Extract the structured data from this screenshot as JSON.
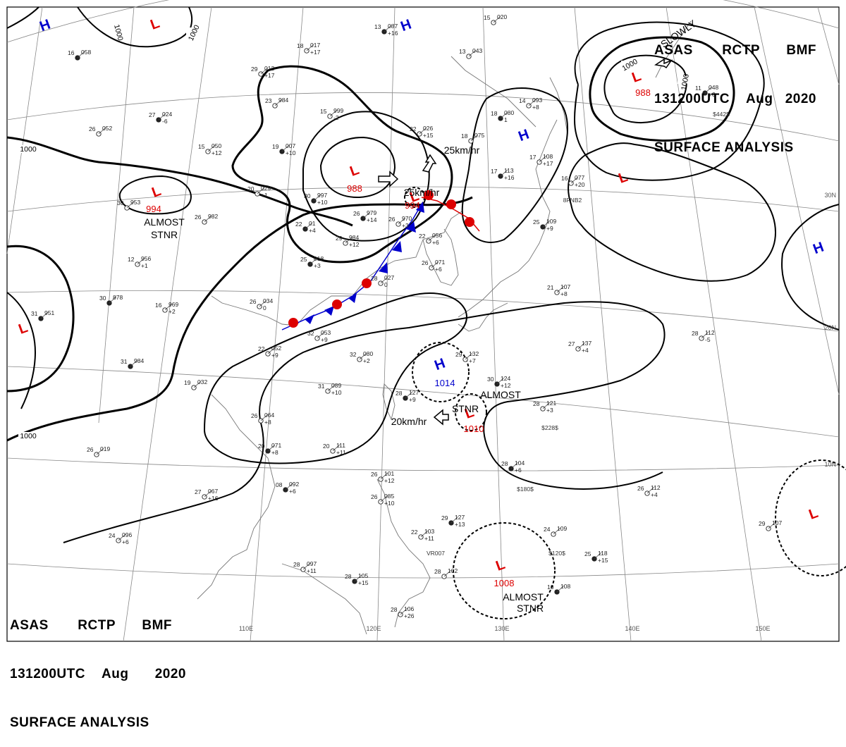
{
  "header": {
    "agency": "ASAS",
    "station": "RCTP",
    "unit": "BMF",
    "time": "131200UTC",
    "month": "Aug",
    "year": "2020",
    "product": "SURFACE ANALYSIS"
  },
  "colors": {
    "low": "#dd0000",
    "high": "#0000cc",
    "isobar": "#000000",
    "front_cold": "#0000cc",
    "front_warm": "#dd0000",
    "land": "#777777",
    "grid": "#888888"
  },
  "lon_labels": [
    "110E",
    "120E",
    "130E",
    "140E",
    "150E"
  ],
  "lat_labels": [
    "30N",
    "20N",
    "10N"
  ],
  "isobar_labels": [
    "1000",
    "1000",
    "1000",
    "1000",
    "1000",
    "1000",
    "1000"
  ],
  "pressure_centers": [
    {
      "type": "H",
      "symbol": "H"
    },
    {
      "type": "L",
      "symbol": "L"
    },
    {
      "type": "H",
      "symbol": "H"
    },
    {
      "type": "L",
      "symbol": "L",
      "value": "988"
    },
    {
      "type": "L",
      "symbol": "L",
      "value": "988"
    },
    {
      "type": "L",
      "symbol": "L",
      "value": "994"
    },
    {
      "type": "L",
      "symbol": "L",
      "value": "994"
    },
    {
      "type": "H",
      "symbol": "H"
    },
    {
      "type": "L",
      "symbol": "L"
    },
    {
      "type": "H",
      "symbol": "H"
    },
    {
      "type": "L",
      "symbol": "L"
    },
    {
      "type": "H",
      "symbol": "H",
      "value": "1014"
    },
    {
      "type": "L",
      "symbol": "L",
      "value": "1010"
    },
    {
      "type": "L",
      "symbol": "L",
      "value": "1008"
    },
    {
      "type": "L",
      "symbol": "L"
    }
  ],
  "annotations": [
    {
      "text": "ALMOST"
    },
    {
      "text": "STNR"
    },
    {
      "text": "ALMOST"
    },
    {
      "text": "STNR"
    },
    {
      "text": "ALMOST"
    },
    {
      "text": "STNR"
    },
    {
      "text": "25km/hr"
    },
    {
      "text": "25km/hr"
    },
    {
      "text": "20km/hr"
    },
    {
      "text": "SLOWLY"
    }
  ],
  "stations": [
    {
      "t": "13",
      "p": "087",
      "d": "+16"
    },
    {
      "t": "15",
      "p": "020",
      "d": ""
    },
    {
      "t": "18",
      "p": "017",
      "d": "+17"
    },
    {
      "t": "16",
      "p": "058",
      "d": ""
    },
    {
      "t": "23",
      "p": "984",
      "d": ""
    },
    {
      "t": "15",
      "p": "999",
      "d": "-2"
    },
    {
      "t": "27",
      "p": "024",
      "d": "-6"
    },
    {
      "t": "26",
      "p": "052",
      "d": ""
    },
    {
      "t": "15",
      "p": "050",
      "d": "+12"
    },
    {
      "t": "19",
      "p": "007",
      "d": "+10"
    },
    {
      "t": "22",
      "p": "026",
      "d": "+15"
    },
    {
      "t": "20",
      "p": "029",
      "d": "+1"
    },
    {
      "t": "30",
      "p": "997",
      "d": "+10"
    },
    {
      "t": "30",
      "p": "953",
      "d": ""
    },
    {
      "t": "26",
      "p": "982",
      "d": ""
    },
    {
      "t": "26",
      "p": "979",
      "d": "+14"
    },
    {
      "t": "26",
      "p": "970",
      "d": "+3"
    },
    {
      "t": "29",
      "p": "984",
      "d": "+12"
    },
    {
      "t": "22",
      "p": "01",
      "d": "+4"
    },
    {
      "t": "22",
      "p": "056",
      "d": "+6"
    },
    {
      "t": "12",
      "p": "956",
      "d": "+1"
    },
    {
      "t": "25",
      "p": "018",
      "d": "+3"
    },
    {
      "t": "26",
      "p": "071",
      "d": "+6"
    },
    {
      "t": "28",
      "p": "027",
      "d": "0"
    },
    {
      "t": "30",
      "p": "878",
      "d": ""
    },
    {
      "t": "16",
      "p": "969",
      "d": "+2"
    },
    {
      "t": "26",
      "p": "034",
      "d": "0"
    },
    {
      "t": "31",
      "p": "951",
      "d": ""
    },
    {
      "t": "32",
      "p": "053",
      "d": "+9"
    },
    {
      "t": "22",
      "p": "052",
      "d": "+9"
    },
    {
      "t": "31",
      "p": "984",
      "d": ""
    },
    {
      "t": "32",
      "p": "080",
      "d": "+2"
    },
    {
      "t": "29",
      "p": "132",
      "d": "+7"
    },
    {
      "t": "30",
      "p": "124",
      "d": "+12"
    },
    {
      "t": "19",
      "p": "032",
      "d": ""
    },
    {
      "t": "31",
      "p": "089",
      "d": "+10"
    },
    {
      "t": "28",
      "p": "127",
      "d": "+9"
    },
    {
      "t": "28",
      "p": "121",
      "d": "+3"
    },
    {
      "t": "26",
      "p": "064",
      "d": "+8"
    },
    {
      "t": "20",
      "p": "071",
      "d": "+8"
    },
    {
      "t": "26",
      "p": "019",
      "d": ""
    },
    {
      "t": "20",
      "p": "111",
      "d": "+11"
    },
    {
      "t": "28",
      "p": "104",
      "d": "+6"
    },
    {
      "t": "26",
      "p": "101",
      "d": "+12"
    },
    {
      "t": "27",
      "p": "067",
      "d": "+16"
    },
    {
      "t": "08",
      "p": "092",
      "d": "+6"
    },
    {
      "t": "26",
      "p": "112",
      "d": "+4"
    },
    {
      "t": "24",
      "p": "096",
      "d": "+6"
    },
    {
      "t": "29",
      "p": "127",
      "d": "+13"
    },
    {
      "t": "22",
      "p": "103",
      "d": "+11"
    },
    {
      "t": "24",
      "p": "109",
      "d": ""
    },
    {
      "t": "25",
      "p": "118",
      "d": "+15"
    },
    {
      "t": "29",
      "p": "107",
      "d": ""
    },
    {
      "t": "28",
      "p": "097",
      "d": "+11"
    },
    {
      "t": "28",
      "p": "105",
      "d": "+15"
    },
    {
      "t": "28",
      "p": "102",
      "d": ""
    },
    {
      "t": "28",
      "p": "106",
      "d": "+26"
    },
    {
      "t": "10",
      "p": "108",
      "d": ""
    },
    {
      "t": "27",
      "p": "137",
      "d": "+4"
    },
    {
      "t": "28",
      "p": "112",
      "d": "-5"
    },
    {
      "t": "17",
      "p": "113",
      "d": "+16"
    },
    {
      "t": "17",
      "p": "108",
      "d": "+17"
    },
    {
      "t": "16",
      "p": "077",
      "d": "+20"
    },
    {
      "t": "25",
      "p": "109",
      "d": "+9"
    },
    {
      "t": "21",
      "p": "107",
      "d": "+8"
    },
    {
      "t": "14",
      "p": "093",
      "d": "+8"
    },
    {
      "t": "18",
      "p": "080",
      "d": "1"
    },
    {
      "t": "13",
      "p": "043",
      "d": ""
    },
    {
      "t": "18",
      "p": "075",
      "d": ""
    },
    {
      "t": "11",
      "p": "048",
      "d": "+0"
    },
    {
      "t": "29",
      "p": "012",
      "d": "+17"
    },
    {
      "t": "26",
      "p": "085",
      "d": "+10"
    }
  ],
  "misc_labels": [
    "$228$",
    "$180$",
    "$120$",
    "$442$",
    "VR007",
    "8FNB2"
  ]
}
